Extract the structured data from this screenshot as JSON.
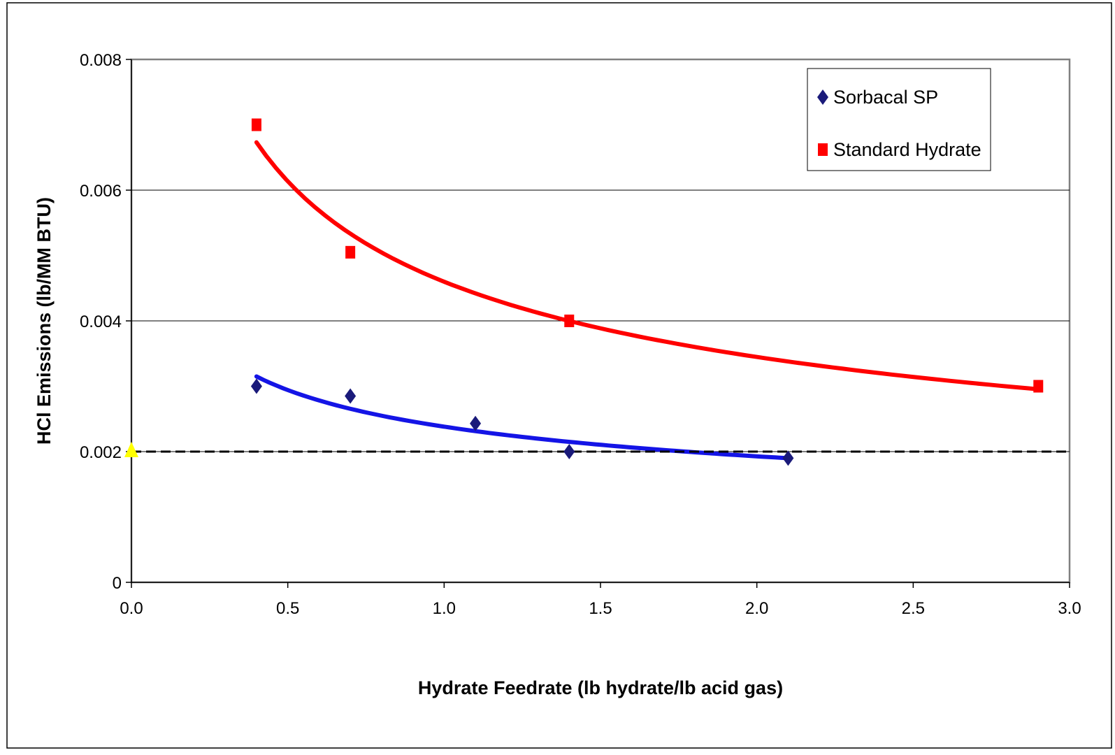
{
  "chart_data": {
    "type": "scatter",
    "title": "",
    "xlabel": "Hydrate Feedrate (lb hydrate/lb acid gas)",
    "ylabel": "HCl Emissions (lb/MM BTU)",
    "xlim": [
      0,
      3.0
    ],
    "ylim": [
      0,
      0.008
    ],
    "x_ticks": [
      "0.0",
      "0.5",
      "1.0",
      "1.5",
      "2.0",
      "2.5",
      "3.0"
    ],
    "x_tick_values": [
      0,
      0.5,
      1.0,
      1.5,
      2.0,
      2.5,
      3.0
    ],
    "y_ticks": [
      "0",
      "0.002",
      "0.004",
      "0.006",
      "0.008"
    ],
    "y_tick_values": [
      0,
      0.002,
      0.004,
      0.006,
      0.008
    ],
    "grid": "horizontal",
    "legend_position": "top-right",
    "series": [
      {
        "name": "Sorbacal SP",
        "marker": "diamond",
        "color": "#1a1a7a",
        "trend_color": "#1414e6",
        "x": [
          0.4,
          0.7,
          1.1,
          1.4,
          2.1
        ],
        "y": [
          0.003,
          0.00285,
          0.00243,
          0.002,
          0.0019
        ],
        "trendline": {
          "from": 0.4,
          "to": 2.1
        }
      },
      {
        "name": "Standard Hydrate",
        "marker": "square",
        "color": "#ff0000",
        "trend_color": "#ff0000",
        "x": [
          0.4,
          0.7,
          1.4,
          2.9
        ],
        "y": [
          0.007,
          0.00505,
          0.004,
          0.003
        ],
        "trendline": {
          "from": 0.4,
          "to": 2.9
        }
      }
    ],
    "reference_line": {
      "y": 0.002,
      "style": "dashed",
      "color": "#000000"
    },
    "extra_marker": {
      "shape": "triangle",
      "x": 0,
      "y": 0.002,
      "color": "#ffff00"
    }
  }
}
